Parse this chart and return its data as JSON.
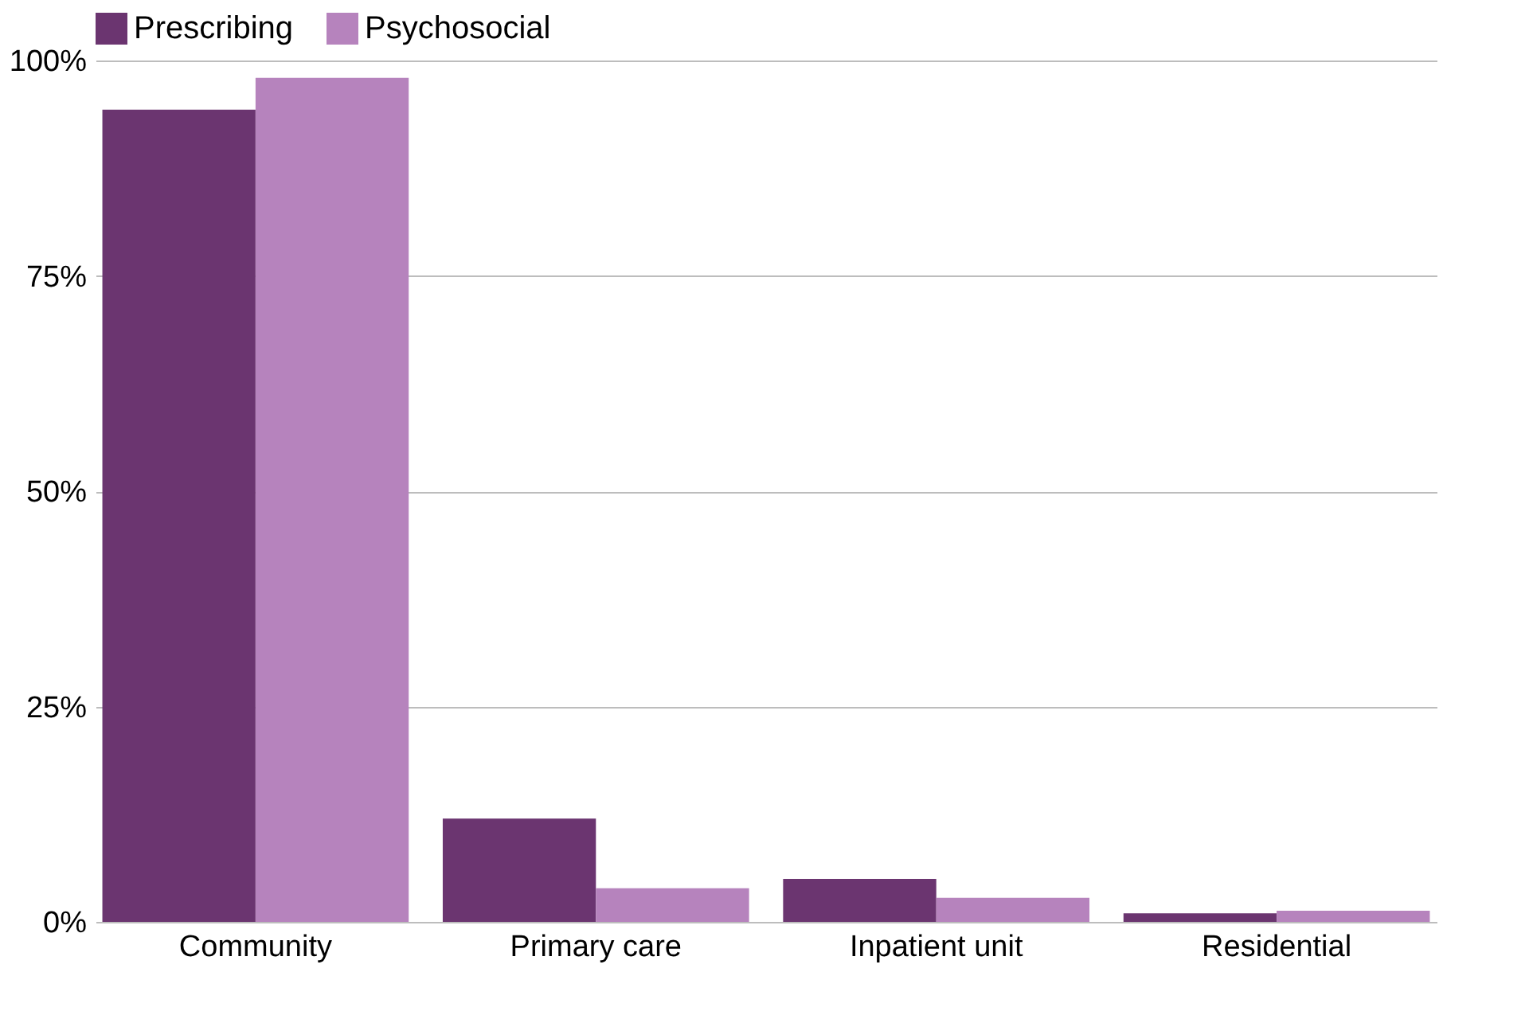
{
  "chart_data": {
    "type": "bar",
    "categories": [
      "Community",
      "Primary care",
      "Inpatient unit",
      "Residential"
    ],
    "series": [
      {
        "name": "Prescribing",
        "color": "#6b3570",
        "values": [
          94.3,
          12.0,
          5.0,
          1.0
        ]
      },
      {
        "name": "Psychosocial",
        "color": "#b683bd",
        "values": [
          98.0,
          3.9,
          2.8,
          1.3
        ]
      }
    ],
    "ylim": [
      0,
      100
    ],
    "yticks": [
      {
        "value": 0,
        "label": "0%"
      },
      {
        "value": 25,
        "label": "25%"
      },
      {
        "value": 50,
        "label": "50%"
      },
      {
        "value": 75,
        "label": "75%"
      },
      {
        "value": 100,
        "label": "100%"
      }
    ],
    "grid": "y",
    "legend": "top"
  }
}
